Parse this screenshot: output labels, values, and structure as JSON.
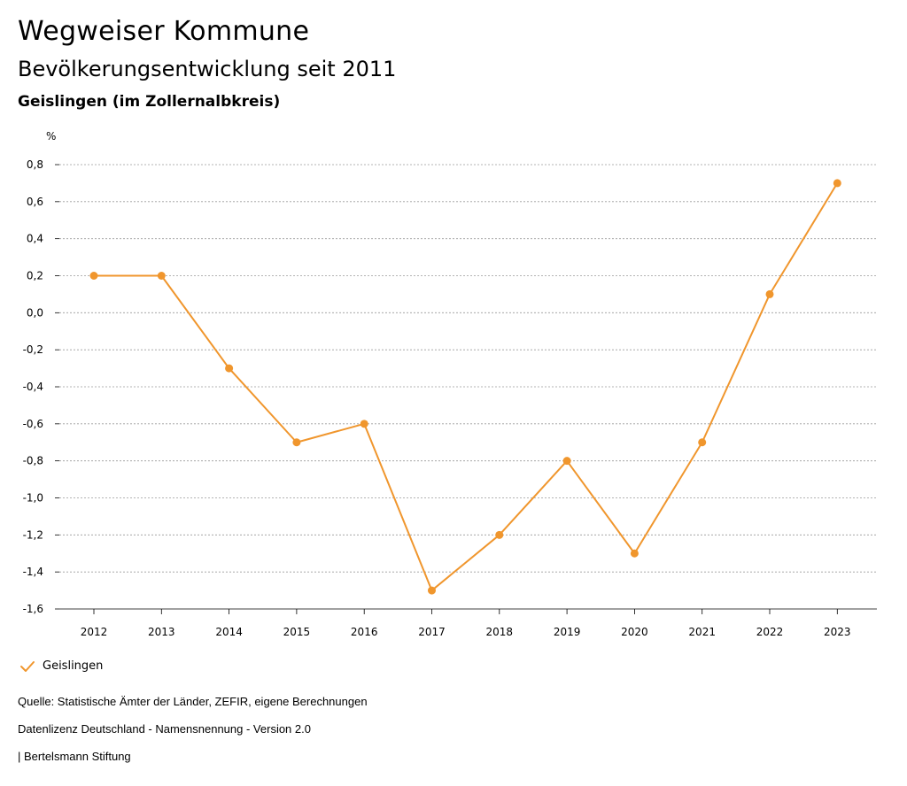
{
  "header": {
    "title": "Wegweiser Kommune",
    "subtitle": "Bevölkerungsentwicklung seit 2011",
    "region": "Geislingen (im Zollernalbkreis)"
  },
  "chart_data": {
    "type": "line",
    "unit_label": "%",
    "ylim": [
      -1.6,
      0.8
    ],
    "y_ticks": [
      0.8,
      0.6,
      0.4,
      0.2,
      0.0,
      -0.2,
      -0.4,
      -0.6,
      -0.8,
      -1.0,
      -1.2,
      -1.4,
      -1.6
    ],
    "y_tick_labels": [
      "0,8",
      "0,6",
      "0,4",
      "0,2",
      "0,0",
      "-0,2",
      "-0,4",
      "-0,6",
      "-0,8",
      "-1,0",
      "-1,2",
      "-1,4",
      "-1,6"
    ],
    "categories": [
      "2012",
      "2013",
      "2014",
      "2015",
      "2016",
      "2017",
      "2018",
      "2019",
      "2020",
      "2021",
      "2022",
      "2023"
    ],
    "series": [
      {
        "name": "Geislingen",
        "color": "#f0962d",
        "values": [
          0.2,
          0.2,
          -0.3,
          -0.7,
          -0.6,
          -1.5,
          -1.2,
          -0.8,
          -1.3,
          -0.7,
          0.1,
          0.7
        ]
      }
    ],
    "grid": true,
    "legend": "bottom-left"
  },
  "legend": {
    "label": "Geislingen",
    "icon": "check-icon"
  },
  "footer": {
    "source": "Quelle: Statistische Ämter der Länder, ZEFIR, eigene Berechnungen",
    "license": "Datenlizenz Deutschland - Namensnennung - Version 2.0",
    "brand": "| Bertelsmann Stiftung"
  }
}
